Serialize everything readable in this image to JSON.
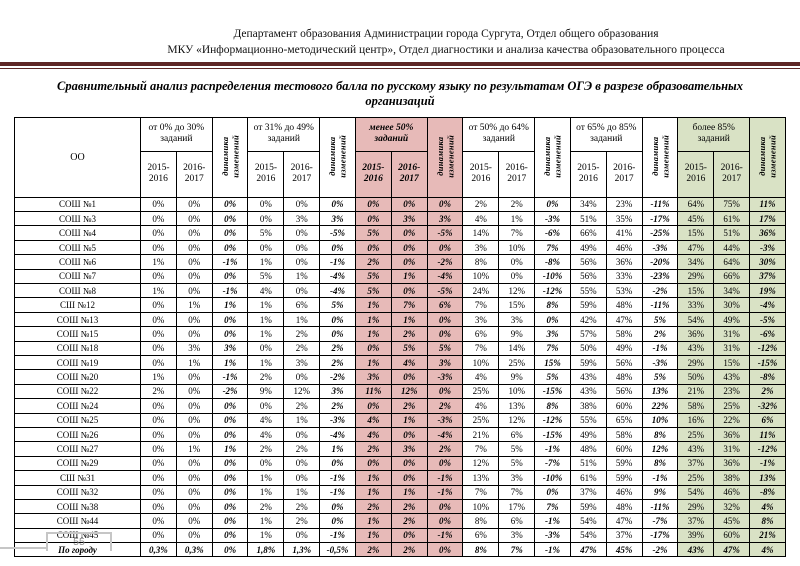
{
  "header": {
    "line1": "Департамент образования Администрации города Сургута, Отдел общего образования",
    "line2": "МКУ «Информационно-методический центр», Отдел диагностики и анализа качества образовательного процесса"
  },
  "title": {
    "line1": "Сравнительный анализ распределения тестового балла по русскому языку по результатам ОГЭ в разрезе образовательных",
    "line2": "организаций"
  },
  "colors": {
    "highlight_pink": "#e7bab8",
    "highlight_green": "#d9e2c5",
    "divider_maroon": "#5e2625"
  },
  "table": {
    "oo_header": "ОО",
    "year1": "2015-2016",
    "year2": "2016-2017",
    "dynamics_label": "динамика\nизменений",
    "groups": [
      {
        "label": "от 0% до 30% заданий",
        "style": "white"
      },
      {
        "label": "от 31% до 49% заданий",
        "style": "white"
      },
      {
        "label": "менее 50% заданий",
        "style": "pink"
      },
      {
        "label": "от 50% до 64% заданий",
        "style": "white"
      },
      {
        "label": "от 65% до 85% заданий",
        "style": "white"
      },
      {
        "label": "более 85% заданий",
        "style": "green"
      }
    ],
    "rows": [
      {
        "name": "СОШ №1",
        "values": [
          "0%",
          "0%",
          "0%",
          "0%",
          "0%",
          "0%",
          "0%",
          "0%",
          "0%",
          "2%",
          "2%",
          "0%",
          "34%",
          "23%",
          "-11%",
          "64%",
          "75%",
          "11%"
        ]
      },
      {
        "name": "СОШ №3",
        "values": [
          "0%",
          "0%",
          "0%",
          "0%",
          "3%",
          "3%",
          "0%",
          "3%",
          "3%",
          "4%",
          "1%",
          "-3%",
          "51%",
          "35%",
          "-17%",
          "45%",
          "61%",
          "17%"
        ]
      },
      {
        "name": "СОШ №4",
        "values": [
          "0%",
          "0%",
          "0%",
          "5%",
          "0%",
          "-5%",
          "5%",
          "0%",
          "-5%",
          "14%",
          "7%",
          "-6%",
          "66%",
          "41%",
          "-25%",
          "15%",
          "51%",
          "36%"
        ]
      },
      {
        "name": "СОШ №5",
        "values": [
          "0%",
          "0%",
          "0%",
          "0%",
          "0%",
          "0%",
          "0%",
          "0%",
          "0%",
          "3%",
          "10%",
          "7%",
          "49%",
          "46%",
          "-3%",
          "47%",
          "44%",
          "-3%"
        ]
      },
      {
        "name": "СОШ №6",
        "values": [
          "1%",
          "0%",
          "-1%",
          "1%",
          "0%",
          "-1%",
          "2%",
          "0%",
          "-2%",
          "8%",
          "0%",
          "-8%",
          "56%",
          "36%",
          "-20%",
          "34%",
          "64%",
          "30%"
        ]
      },
      {
        "name": "СОШ №7",
        "values": [
          "0%",
          "0%",
          "0%",
          "5%",
          "1%",
          "-4%",
          "5%",
          "1%",
          "-4%",
          "10%",
          "0%",
          "-10%",
          "56%",
          "33%",
          "-23%",
          "29%",
          "66%",
          "37%"
        ]
      },
      {
        "name": "СОШ №8",
        "values": [
          "1%",
          "0%",
          "-1%",
          "4%",
          "0%",
          "-4%",
          "5%",
          "0%",
          "-5%",
          "24%",
          "12%",
          "-12%",
          "55%",
          "53%",
          "-2%",
          "15%",
          "34%",
          "19%"
        ]
      },
      {
        "name": "СШ №12",
        "values": [
          "0%",
          "1%",
          "1%",
          "1%",
          "6%",
          "5%",
          "1%",
          "7%",
          "6%",
          "7%",
          "15%",
          "8%",
          "59%",
          "48%",
          "-11%",
          "33%",
          "30%",
          "-4%"
        ]
      },
      {
        "name": "СОШ №13",
        "values": [
          "0%",
          "0%",
          "0%",
          "1%",
          "1%",
          "0%",
          "1%",
          "1%",
          "0%",
          "3%",
          "3%",
          "0%",
          "42%",
          "47%",
          "5%",
          "54%",
          "49%",
          "-5%"
        ]
      },
      {
        "name": "СОШ №15",
        "values": [
          "0%",
          "0%",
          "0%",
          "1%",
          "2%",
          "0%",
          "1%",
          "2%",
          "0%",
          "6%",
          "9%",
          "3%",
          "57%",
          "58%",
          "2%",
          "36%",
          "31%",
          "-6%"
        ]
      },
      {
        "name": "СОШ №18",
        "values": [
          "0%",
          "3%",
          "3%",
          "0%",
          "2%",
          "2%",
          "0%",
          "5%",
          "5%",
          "7%",
          "14%",
          "7%",
          "50%",
          "49%",
          "-1%",
          "43%",
          "31%",
          "-12%"
        ]
      },
      {
        "name": "СОШ №19",
        "values": [
          "0%",
          "1%",
          "1%",
          "1%",
          "3%",
          "2%",
          "1%",
          "4%",
          "3%",
          "10%",
          "25%",
          "15%",
          "59%",
          "56%",
          "-3%",
          "29%",
          "15%",
          "-15%"
        ]
      },
      {
        "name": "СОШ №20",
        "values": [
          "1%",
          "0%",
          "-1%",
          "2%",
          "0%",
          "-2%",
          "3%",
          "0%",
          "-3%",
          "4%",
          "9%",
          "5%",
          "43%",
          "48%",
          "5%",
          "50%",
          "43%",
          "-8%"
        ]
      },
      {
        "name": "СОШ №22",
        "values": [
          "2%",
          "0%",
          "-2%",
          "9%",
          "12%",
          "3%",
          "11%",
          "12%",
          "0%",
          "25%",
          "10%",
          "-15%",
          "43%",
          "56%",
          "13%",
          "21%",
          "23%",
          "2%"
        ]
      },
      {
        "name": "СОШ №24",
        "values": [
          "0%",
          "0%",
          "0%",
          "0%",
          "2%",
          "2%",
          "0%",
          "2%",
          "2%",
          "4%",
          "13%",
          "8%",
          "38%",
          "60%",
          "22%",
          "58%",
          "25%",
          "-32%"
        ]
      },
      {
        "name": "СОШ №25",
        "values": [
          "0%",
          "0%",
          "0%",
          "4%",
          "1%",
          "-3%",
          "4%",
          "1%",
          "-3%",
          "25%",
          "12%",
          "-12%",
          "55%",
          "65%",
          "10%",
          "16%",
          "22%",
          "6%"
        ]
      },
      {
        "name": "СОШ №26",
        "values": [
          "0%",
          "0%",
          "0%",
          "4%",
          "0%",
          "-4%",
          "4%",
          "0%",
          "-4%",
          "21%",
          "6%",
          "-15%",
          "49%",
          "58%",
          "8%",
          "25%",
          "36%",
          "11%"
        ]
      },
      {
        "name": "СОШ №27",
        "values": [
          "0%",
          "1%",
          "1%",
          "2%",
          "2%",
          "1%",
          "2%",
          "3%",
          "2%",
          "7%",
          "5%",
          "-1%",
          "48%",
          "60%",
          "12%",
          "43%",
          "31%",
          "-12%"
        ]
      },
      {
        "name": "СОШ №29",
        "values": [
          "0%",
          "0%",
          "0%",
          "0%",
          "0%",
          "0%",
          "0%",
          "0%",
          "0%",
          "12%",
          "5%",
          "-7%",
          "51%",
          "59%",
          "8%",
          "37%",
          "36%",
          "-1%"
        ]
      },
      {
        "name": "СШ №31",
        "values": [
          "0%",
          "0%",
          "0%",
          "1%",
          "0%",
          "-1%",
          "1%",
          "0%",
          "-1%",
          "13%",
          "3%",
          "-10%",
          "61%",
          "59%",
          "-1%",
          "25%",
          "38%",
          "13%"
        ]
      },
      {
        "name": "СОШ №32",
        "values": [
          "0%",
          "0%",
          "0%",
          "1%",
          "1%",
          "-1%",
          "1%",
          "1%",
          "-1%",
          "7%",
          "7%",
          "0%",
          "37%",
          "46%",
          "9%",
          "54%",
          "46%",
          "-8%"
        ]
      },
      {
        "name": "СОШ №38",
        "values": [
          "0%",
          "0%",
          "0%",
          "2%",
          "2%",
          "0%",
          "2%",
          "2%",
          "0%",
          "10%",
          "17%",
          "7%",
          "59%",
          "48%",
          "-11%",
          "29%",
          "32%",
          "4%"
        ]
      },
      {
        "name": "СОШ №44",
        "values": [
          "0%",
          "0%",
          "0%",
          "1%",
          "2%",
          "0%",
          "1%",
          "2%",
          "0%",
          "8%",
          "6%",
          "-1%",
          "54%",
          "47%",
          "-7%",
          "37%",
          "45%",
          "8%"
        ]
      },
      {
        "name": "СОШ №45",
        "values": [
          "0%",
          "0%",
          "0%",
          "1%",
          "0%",
          "-1%",
          "1%",
          "0%",
          "-1%",
          "6%",
          "3%",
          "-3%",
          "54%",
          "37%",
          "-17%",
          "39%",
          "60%",
          "21%"
        ]
      },
      {
        "name": "По городу",
        "values": [
          "0,3%",
          "0,3%",
          "0%",
          "1,8%",
          "1,3%",
          "-0,5%",
          "2%",
          "2%",
          "0%",
          "8%",
          "7%",
          "-1%",
          "47%",
          "45%",
          "-2%",
          "43%",
          "47%",
          "4%"
        ]
      }
    ]
  },
  "footer": {
    "page_number": "55"
  }
}
